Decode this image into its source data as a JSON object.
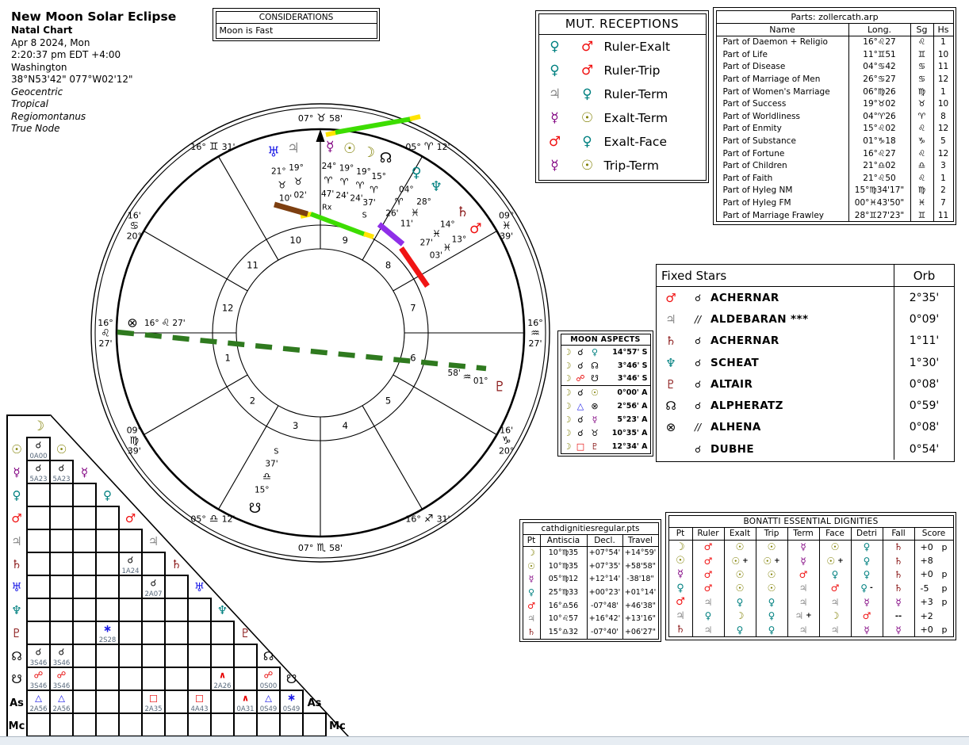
{
  "header": {
    "title": "New Moon Solar Eclipse",
    "subtitle": "Natal Chart",
    "date": "Apr 8 2024, Mon",
    "time": "2:20:37 pm  EDT +4:00",
    "city": "Washington",
    "coords": "38°N53'42\" 077°W02'12\"",
    "notes": [
      "Geocentric",
      "Tropical",
      "Regiomontanus",
      "True Node"
    ]
  },
  "considerations": {
    "title": "CONSIDERATIONS",
    "items": [
      "Moon is Fast"
    ]
  },
  "glyphs": {
    "planets": {
      "sun": "☉",
      "moon": "☽",
      "mercury": "☿",
      "venus": "♀",
      "mars": "♂",
      "jupiter": "♃",
      "saturn": "♄",
      "uranus": "♅",
      "neptune": "♆",
      "pluto": "♇",
      "north-node": "☊",
      "south-node": "☋",
      "fortune": "⊗",
      "asc": "As",
      "mc": "Mc"
    },
    "signs": {
      "aries": "♈",
      "taurus": "♉",
      "gemini": "♊",
      "cancer": "♋",
      "leo": "♌",
      "virgo": "♍",
      "libra": "♎",
      "scorpio": "♏",
      "sagittarius": "♐",
      "capricorn": "♑",
      "aquarius": "♒",
      "pisces": "♓"
    },
    "aspects": {
      "conjunction": "☌",
      "opposition": "☍",
      "trine": "△",
      "square": "□",
      "sextile": "∗",
      "quindecile": "∧",
      "parallel": "//"
    }
  },
  "colors": {
    "planets": {
      "sun": "#7f7f00",
      "moon": "#7f7f00",
      "mercury": "#800080",
      "venus": "#008080",
      "mars": "#f01010",
      "jupiter": "#8a8a8a",
      "saturn": "#8b1a1a",
      "uranus": "#1a1ae6",
      "neptune": "#008080",
      "pluto": "#8b1a1a",
      "north-node": "#000000",
      "south-node": "#000000",
      "fortune": "#000000",
      "asc": "#000000",
      "mc": "#000000"
    },
    "aspects": {
      "conjunction": "#000000",
      "opposition": "#e60000",
      "trine": "#1a1ae6",
      "square": "#e60000",
      "sextile": "#1a1ae6",
      "quindecile": "#e60000",
      "parallel": "#000000"
    }
  },
  "mut_receptions": {
    "title": "MUT. RECEPTIONS",
    "rows": [
      {
        "p1": "venus",
        "p2": "mars",
        "label": "Ruler-Exalt"
      },
      {
        "p1": "venus",
        "p2": "mars",
        "label": "Ruler-Trip"
      },
      {
        "p1": "jupiter",
        "p2": "venus",
        "label": "Ruler-Term"
      },
      {
        "p1": "mercury",
        "p2": "sun",
        "label": "Exalt-Term"
      },
      {
        "p1": "mars",
        "p2": "venus",
        "label": "Exalt-Face"
      },
      {
        "p1": "mercury",
        "p2": "sun",
        "label": "Trip-Term"
      }
    ]
  },
  "parts_table": {
    "title": "Parts: zollercath.arp",
    "headers": [
      "Name",
      "Long.",
      "Sg",
      "Hs"
    ],
    "rows": [
      {
        "name": "Part of Daemon + Religio",
        "long": "16°♌27",
        "sg": "leo",
        "hs": "1"
      },
      {
        "name": "Part of Life",
        "long": "11°♊51",
        "sg": "gemini",
        "hs": "10"
      },
      {
        "name": "Part of Disease",
        "long": "04°♋42",
        "sg": "cancer",
        "hs": "11"
      },
      {
        "name": "Part of Marriage of Men",
        "long": "26°♋27",
        "sg": "cancer",
        "hs": "12"
      },
      {
        "name": "Part of Women's Marriage",
        "long": "06°♍26",
        "sg": "virgo",
        "hs": "1"
      },
      {
        "name": "Part of Success",
        "long": "19°♉02",
        "sg": "taurus",
        "hs": "10"
      },
      {
        "name": "Part of Worldliness",
        "long": "04°♈26",
        "sg": "aries",
        "hs": "8"
      },
      {
        "name": "Part of Enmity",
        "long": "15°♌02",
        "sg": "leo",
        "hs": "12"
      },
      {
        "name": "Part of Substance",
        "long": "01°♑18",
        "sg": "capricorn",
        "hs": "5"
      },
      {
        "name": "Part of Fortune",
        "long": "16°♌27",
        "sg": "leo",
        "hs": "12"
      },
      {
        "name": "Part of Children",
        "long": "21°♎02",
        "sg": "libra",
        "hs": "3"
      },
      {
        "name": "Part of Faith",
        "long": "21°♌50",
        "sg": "leo",
        "hs": "1"
      },
      {
        "name": "Part of Hyleg NM",
        "long": "15°♍34'17\"",
        "sg": "virgo",
        "hs": "2"
      },
      {
        "name": "Part of Hyleg FM",
        "long": "00°♓43'50\"",
        "sg": "pisces",
        "hs": "7"
      },
      {
        "name": "Part of Marriage Frawley",
        "long": "28°♊27'23\"",
        "sg": "gemini",
        "hs": "11"
      }
    ]
  },
  "fixed_stars": {
    "title": "Fixed Stars",
    "orb_header": "Orb",
    "rows": [
      {
        "planet": "mars",
        "aspect": "conjunction",
        "star": "ACHERNAR",
        "orb": "2°35'"
      },
      {
        "planet": "jupiter",
        "aspect": "parallel",
        "star": "ALDEBARAN ***",
        "orb": "0°09'"
      },
      {
        "planet": "saturn",
        "aspect": "conjunction",
        "star": "ACHERNAR",
        "orb": "1°11'"
      },
      {
        "planet": "neptune",
        "aspect": "conjunction",
        "star": "SCHEAT",
        "orb": "1°30'"
      },
      {
        "planet": "pluto",
        "aspect": "conjunction",
        "star": "ALTAIR",
        "orb": "0°08'"
      },
      {
        "planet": "north-node",
        "aspect": "conjunction",
        "star": "ALPHERATZ",
        "orb": "0°59'"
      },
      {
        "planet": "fortune",
        "aspect": "parallel",
        "star": "ALHENA",
        "orb": "0°08'"
      },
      {
        "planet": "",
        "aspect": "conjunction",
        "star": "DUBHE",
        "orb": "0°54'"
      }
    ]
  },
  "moon_aspects": {
    "title": "MOON ASPECTS",
    "separator_after": 3,
    "rows": [
      {
        "aspect": "conjunction",
        "target": "venus",
        "orb": "14°57' S"
      },
      {
        "aspect": "conjunction",
        "target": "north-node",
        "orb": "3°46' S"
      },
      {
        "aspect": "opposition",
        "target": "south-node",
        "orb": "3°46' S"
      },
      {
        "aspect": "conjunction",
        "target": "sun",
        "orb": "0°00' A"
      },
      {
        "aspect": "trine",
        "target": "fortune",
        "orb": "2°56' A"
      },
      {
        "aspect": "conjunction",
        "target": "mercury",
        "orb": "5°23' A"
      },
      {
        "aspect": "conjunction",
        "target": "taurus-ingress",
        "orb": "10°35' A"
      },
      {
        "aspect": "square",
        "target": "pluto",
        "orb": "12°34' A"
      }
    ]
  },
  "cath_table": {
    "title": "cathdignitiesregular.pts",
    "headers": [
      "Pt",
      "Antiscia",
      "Decl.",
      "Travel"
    ],
    "rows": [
      {
        "planet": "moon",
        "antiscia": "10°♍35",
        "decl": "+07°54'",
        "travel": "+14°59'"
      },
      {
        "planet": "sun",
        "antiscia": "10°♍35",
        "decl": "+07°35'",
        "travel": "+58'58\""
      },
      {
        "planet": "mercury",
        "antiscia": "05°♍12",
        "decl": "+12°14'",
        "travel": "-38'18\""
      },
      {
        "planet": "venus",
        "antiscia": "25°♍33",
        "decl": "+00°23'",
        "travel": "+01°14'"
      },
      {
        "planet": "mars",
        "antiscia": "16°♎56",
        "decl": "-07°48'",
        "travel": "+46'38\""
      },
      {
        "planet": "jupiter",
        "antiscia": "10°♌57",
        "decl": "+16°42'",
        "travel": "+13'16\""
      },
      {
        "planet": "saturn",
        "antiscia": "15°♎32",
        "decl": "-07°40'",
        "travel": "+06'27\""
      }
    ]
  },
  "bonatti": {
    "title": "BONATTI ESSENTIAL DIGNITIES",
    "headers": [
      "Pt",
      "Ruler",
      "Exalt",
      "Trip",
      "Term",
      "Face",
      "Detri",
      "Fall",
      "Score"
    ],
    "rows": [
      {
        "planet": "moon",
        "cells": [
          {
            "g": "mars"
          },
          {
            "g": "sun"
          },
          {
            "g": "sun"
          },
          {
            "g": "mercury"
          },
          {
            "g": "sun"
          },
          {
            "g": "venus"
          },
          {
            "g": "saturn"
          }
        ],
        "score": "+0",
        "peregrine": "p"
      },
      {
        "planet": "sun",
        "cells": [
          {
            "g": "mars"
          },
          {
            "g": "sun",
            "m": "+"
          },
          {
            "g": "sun",
            "m": "+"
          },
          {
            "g": "mercury"
          },
          {
            "g": "sun",
            "m": "+"
          },
          {
            "g": "venus"
          },
          {
            "g": "saturn"
          }
        ],
        "score": "+8",
        "peregrine": ""
      },
      {
        "planet": "mercury",
        "cells": [
          {
            "g": "mars"
          },
          {
            "g": "sun"
          },
          {
            "g": "sun"
          },
          {
            "g": "mars"
          },
          {
            "g": "venus"
          },
          {
            "g": "venus"
          },
          {
            "g": "saturn"
          }
        ],
        "score": "+0",
        "peregrine": "p"
      },
      {
        "planet": "venus",
        "cells": [
          {
            "g": "mars"
          },
          {
            "g": "sun"
          },
          {
            "g": "sun"
          },
          {
            "g": "jupiter"
          },
          {
            "g": "mars"
          },
          {
            "g": "venus",
            "m": "-"
          },
          {
            "g": "saturn"
          }
        ],
        "score": "-5",
        "peregrine": "p"
      },
      {
        "planet": "mars",
        "cells": [
          {
            "g": "jupiter"
          },
          {
            "g": "venus"
          },
          {
            "g": "venus"
          },
          {
            "g": "jupiter"
          },
          {
            "g": "jupiter"
          },
          {
            "g": "mercury"
          },
          {
            "g": "mercury"
          }
        ],
        "score": "+3",
        "peregrine": "p"
      },
      {
        "planet": "jupiter",
        "cells": [
          {
            "g": "venus"
          },
          {
            "g": "moon"
          },
          {
            "g": "venus"
          },
          {
            "g": "jupiter",
            "m": "+"
          },
          {
            "g": "moon"
          },
          {
            "g": "mars"
          },
          {
            "g": "",
            "t": "--"
          }
        ],
        "score": "+2",
        "peregrine": ""
      },
      {
        "planet": "saturn",
        "cells": [
          {
            "g": "jupiter"
          },
          {
            "g": "venus"
          },
          {
            "g": "venus"
          },
          {
            "g": "jupiter"
          },
          {
            "g": "jupiter"
          },
          {
            "g": "mercury"
          },
          {
            "g": "mercury"
          }
        ],
        "score": "+0",
        "peregrine": "p"
      }
    ]
  },
  "wheel": {
    "house_numbers": [
      "1",
      "2",
      "3",
      "4",
      "5",
      "6",
      "7",
      "8",
      "9",
      "10",
      "11",
      "12"
    ],
    "cusps": [
      {
        "house": 1,
        "lon": 136.45,
        "d": "16°",
        "sign": "leo",
        "m": "27'"
      },
      {
        "house": 2,
        "lon": 159.65,
        "d": "09°",
        "sign": "virgo",
        "m": "39'"
      },
      {
        "house": 3,
        "lon": 185.2,
        "d": "05°",
        "sign": "libra",
        "m": "12'"
      },
      {
        "house": 4,
        "lon": 217.97,
        "d": "07°",
        "sign": "scorpio",
        "m": "58'"
      },
      {
        "house": 5,
        "lon": 256.52,
        "d": "16°",
        "sign": "sagittarius",
        "m": "31'"
      },
      {
        "house": 6,
        "lon": 290.27,
        "d": "20°",
        "sign": "capricorn",
        "m": "16'"
      },
      {
        "house": 7,
        "lon": 316.45,
        "d": "16°",
        "sign": "aquarius",
        "m": "27'"
      },
      {
        "house": 8,
        "lon": 339.65,
        "d": "09°",
        "sign": "pisces",
        "m": "39'"
      },
      {
        "house": 9,
        "lon": 5.2,
        "d": "05°",
        "sign": "aries",
        "m": "12'"
      },
      {
        "house": 10,
        "lon": 37.97,
        "d": "07°",
        "sign": "taurus",
        "m": "58'"
      },
      {
        "house": 11,
        "lon": 76.52,
        "d": "16°",
        "sign": "gemini",
        "m": "31'"
      },
      {
        "house": 12,
        "lon": 110.27,
        "d": "20°",
        "sign": "cancer",
        "m": "16'"
      }
    ],
    "planets": [
      {
        "name": "uranus",
        "lon": 51.17,
        "d": "21°",
        "sign": "taurus",
        "m": "10'"
      },
      {
        "name": "jupiter",
        "lon": 49.03,
        "d": "19°",
        "sign": "taurus",
        "m": "02'"
      },
      {
        "name": "mercury",
        "lon": 24.78,
        "d": "24°",
        "sign": "aries",
        "m": "47'",
        "tag": "Rx"
      },
      {
        "name": "sun",
        "lon": 19.4,
        "d": "19°",
        "sign": "aries",
        "m": "24'"
      },
      {
        "name": "moon",
        "lon": 19.4,
        "d": "19°",
        "sign": "aries",
        "m": "24'"
      },
      {
        "name": "north-node",
        "lon": 15.62,
        "d": "15°",
        "sign": "aries",
        "m": "37'",
        "tag": "S"
      },
      {
        "name": "venus",
        "lon": 4.43,
        "d": "04°",
        "sign": "aries",
        "m": "26'"
      },
      {
        "name": "neptune",
        "lon": 358.18,
        "d": "28°",
        "sign": "pisces",
        "m": "11'"
      },
      {
        "name": "saturn",
        "lon": 344.45,
        "d": "14°",
        "sign": "pisces",
        "m": "27'"
      },
      {
        "name": "mars",
        "lon": 343.05,
        "d": "13°",
        "sign": "pisces",
        "m": "03'"
      },
      {
        "name": "pluto",
        "lon": 301.97,
        "d": "01°",
        "sign": "aquarius",
        "m": "58'"
      },
      {
        "name": "south-node",
        "lon": 195.62,
        "d": "15°",
        "sign": "libra",
        "m": "37'",
        "tag": "S"
      }
    ],
    "fortune": {
      "d": "16°",
      "sign": "leo",
      "m": "27'"
    }
  },
  "aspect_grid": {
    "cols": [
      "moon",
      "sun",
      "mercury",
      "venus",
      "mars",
      "jupiter",
      "saturn",
      "uranus",
      "neptune",
      "pluto",
      "north-node",
      "south-node",
      "asc",
      "mc"
    ],
    "rows": [
      {
        "label": "sun",
        "cells": [
          {
            "col": 0,
            "a": "conjunction",
            "code": "0A00"
          }
        ]
      },
      {
        "label": "mercury",
        "cells": [
          {
            "col": 0,
            "a": "conjunction",
            "code": "5A23"
          },
          {
            "col": 1,
            "a": "conjunction",
            "code": "5A23"
          }
        ]
      },
      {
        "label": "venus",
        "cells": []
      },
      {
        "label": "mars",
        "cells": []
      },
      {
        "label": "jupiter",
        "cells": []
      },
      {
        "label": "saturn",
        "cells": [
          {
            "col": 4,
            "a": "conjunction",
            "code": "1A24"
          }
        ]
      },
      {
        "label": "uranus",
        "cells": [
          {
            "col": 5,
            "a": "conjunction",
            "code": "2A07"
          }
        ]
      },
      {
        "label": "neptune",
        "cells": []
      },
      {
        "label": "pluto",
        "cells": [
          {
            "col": 3,
            "a": "sextile",
            "code": "2S28"
          }
        ]
      },
      {
        "label": "north-node",
        "cells": [
          {
            "col": 0,
            "a": "conjunction",
            "code": "3S46"
          },
          {
            "col": 1,
            "a": "conjunction",
            "code": "3S46"
          }
        ]
      },
      {
        "label": "south-node",
        "cells": [
          {
            "col": 0,
            "a": "opposition",
            "code": "3S46"
          },
          {
            "col": 1,
            "a": "opposition",
            "code": "3S46"
          },
          {
            "col": 8,
            "a": "quindecile",
            "code": "2A26"
          },
          {
            "col": 10,
            "a": "opposition",
            "code": "0S00"
          }
        ]
      },
      {
        "label": "asc",
        "cells": [
          {
            "col": 0,
            "a": "trine",
            "code": "2A56"
          },
          {
            "col": 1,
            "a": "trine",
            "code": "2A56"
          },
          {
            "col": 5,
            "a": "square",
            "code": "2A35"
          },
          {
            "col": 7,
            "a": "square",
            "code": "4A43"
          },
          {
            "col": 9,
            "a": "quindecile",
            "code": "0A31"
          },
          {
            "col": 10,
            "a": "trine",
            "code": "0S49"
          },
          {
            "col": 11,
            "a": "sextile",
            "code": "0S49"
          }
        ]
      },
      {
        "label": "mc",
        "cells": []
      }
    ]
  }
}
